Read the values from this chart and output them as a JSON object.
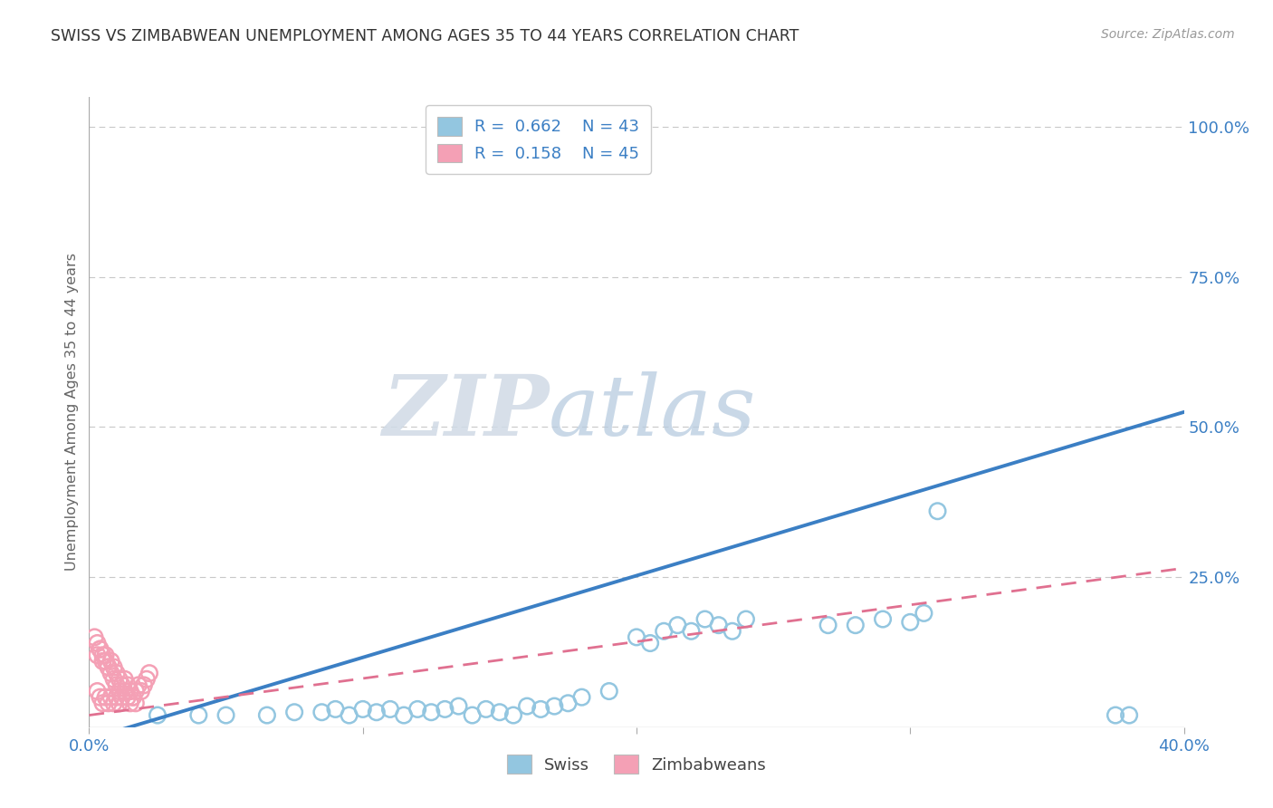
{
  "title": "SWISS VS ZIMBABWEAN UNEMPLOYMENT AMONG AGES 35 TO 44 YEARS CORRELATION CHART",
  "source": "Source: ZipAtlas.com",
  "ylabel": "Unemployment Among Ages 35 to 44 years",
  "xlim": [
    0.0,
    0.4
  ],
  "ylim": [
    0.0,
    1.05
  ],
  "x_ticks": [
    0.0,
    0.1,
    0.2,
    0.3,
    0.4
  ],
  "x_tick_labels": [
    "0.0%",
    "",
    "",
    "",
    "40.0%"
  ],
  "y_ticks": [
    0.0,
    0.25,
    0.5,
    0.75,
    1.0
  ],
  "y_tick_labels": [
    "",
    "25.0%",
    "50.0%",
    "75.0%",
    "100.0%"
  ],
  "swiss_R": 0.662,
  "swiss_N": 43,
  "zimb_R": 0.158,
  "zimb_N": 45,
  "swiss_color": "#93c6e0",
  "zimb_color": "#f4a0b5",
  "swiss_line_color": "#3b7fc4",
  "zimb_line_color": "#e07090",
  "legend_label_swiss": "Swiss",
  "legend_label_zimb": "Zimbabweans",
  "swiss_line_x0": 0.0,
  "swiss_line_y0": -0.02,
  "swiss_line_x1": 0.4,
  "swiss_line_y1": 0.525,
  "zimb_line_x0": 0.0,
  "zimb_line_y0": 0.02,
  "zimb_line_x1": 0.4,
  "zimb_line_y1": 0.265,
  "swiss_scatter_x": [
    0.025,
    0.04,
    0.05,
    0.065,
    0.075,
    0.085,
    0.09,
    0.095,
    0.1,
    0.105,
    0.11,
    0.115,
    0.12,
    0.125,
    0.13,
    0.135,
    0.14,
    0.145,
    0.15,
    0.155,
    0.16,
    0.165,
    0.17,
    0.175,
    0.18,
    0.19,
    0.2,
    0.205,
    0.21,
    0.215,
    0.22,
    0.225,
    0.23,
    0.235,
    0.24,
    0.27,
    0.28,
    0.29,
    0.3,
    0.305,
    0.31,
    0.375,
    0.38
  ],
  "swiss_scatter_y": [
    0.02,
    0.02,
    0.02,
    0.02,
    0.025,
    0.025,
    0.03,
    0.02,
    0.03,
    0.025,
    0.03,
    0.02,
    0.03,
    0.025,
    0.03,
    0.035,
    0.02,
    0.03,
    0.025,
    0.02,
    0.035,
    0.03,
    0.035,
    0.04,
    0.05,
    0.06,
    0.15,
    0.14,
    0.16,
    0.17,
    0.16,
    0.18,
    0.17,
    0.16,
    0.18,
    0.17,
    0.17,
    0.18,
    0.175,
    0.19,
    0.36,
    0.02,
    0.02
  ],
  "zimb_scatter_x": [
    0.003,
    0.004,
    0.005,
    0.006,
    0.007,
    0.008,
    0.009,
    0.01,
    0.011,
    0.012,
    0.013,
    0.014,
    0.015,
    0.016,
    0.017,
    0.018,
    0.019,
    0.02,
    0.021,
    0.022,
    0.003,
    0.004,
    0.005,
    0.006,
    0.007,
    0.008,
    0.009,
    0.01,
    0.011,
    0.012,
    0.013,
    0.014,
    0.015,
    0.016,
    0.017,
    0.002,
    0.003,
    0.004,
    0.005,
    0.006,
    0.007,
    0.008,
    0.009,
    0.01,
    0.011
  ],
  "zimb_scatter_y": [
    0.06,
    0.05,
    0.04,
    0.05,
    0.04,
    0.05,
    0.04,
    0.05,
    0.04,
    0.05,
    0.06,
    0.05,
    0.04,
    0.05,
    0.06,
    0.07,
    0.06,
    0.07,
    0.08,
    0.09,
    0.12,
    0.13,
    0.11,
    0.12,
    0.1,
    0.11,
    0.1,
    0.09,
    0.08,
    0.07,
    0.08,
    0.07,
    0.06,
    0.05,
    0.04,
    0.15,
    0.14,
    0.13,
    0.12,
    0.11,
    0.1,
    0.09,
    0.08,
    0.07,
    0.06
  ],
  "background_color": "#ffffff",
  "grid_color": "#c8c8c8",
  "watermark_zip_color": "#d8e4f0",
  "watermark_atlas_color": "#b8cfe8"
}
